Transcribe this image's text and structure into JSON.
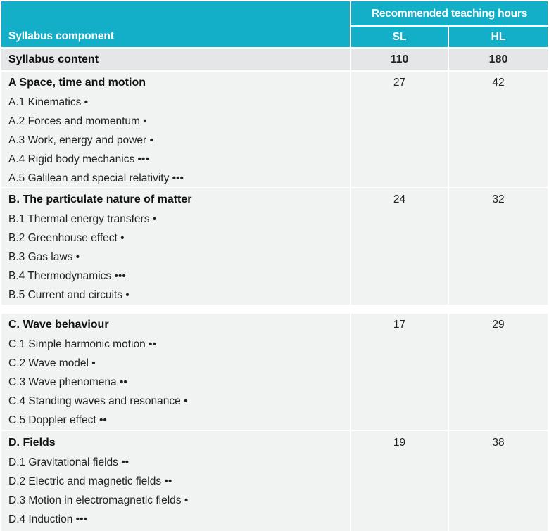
{
  "header": {
    "component_label": "Syllabus component",
    "hours_label": "Recommended teaching hours",
    "sl_label": "SL",
    "hl_label": "HL"
  },
  "content_row": {
    "label": "Syllabus content",
    "sl": "110",
    "hl": "180"
  },
  "sections": [
    {
      "title": "A Space, time and motion",
      "sl": "27",
      "hl": "42",
      "items": [
        "A.1 Kinematics •",
        "A.2 Forces and momentum •",
        "A.3 Work, energy and power •",
        "A.4 Rigid body mechanics •••",
        "A.5 Galilean and special relativity •••"
      ]
    },
    {
      "title": "B. The particulate nature of matter",
      "sl": "24",
      "hl": "32",
      "items": [
        "B.1 Thermal energy transfers •",
        "B.2 Greenhouse effect •",
        "B.3 Gas laws •",
        "B.4 Thermodynamics •••",
        "B.5 Current and circuits •"
      ]
    },
    {
      "title": "C. Wave behaviour",
      "sl": "17",
      "hl": "29",
      "items": [
        "C.1 Simple harmonic motion ••",
        "C.2 Wave model •",
        "C.3 Wave phenomena ••",
        "C.4 Standing waves and resonance •",
        "C.5 Doppler effect ••"
      ]
    },
    {
      "title": "D. Fields",
      "sl": "19",
      "hl": "38",
      "items": [
        "D.1 Gravitational fields ••",
        "D.2 Electric and magnetic fields ••",
        "D.3 Motion in electromagnetic fields •",
        "D.4 Induction •••"
      ]
    }
  ]
}
